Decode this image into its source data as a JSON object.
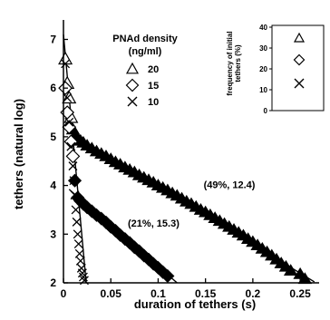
{
  "chart_data": {
    "type": "scatter",
    "title": "",
    "xlabel": "duration of tethers (s)",
    "ylabel": "tethers (natural log)",
    "xlim": [
      0,
      0.27
    ],
    "ylim": [
      2,
      7.4
    ],
    "xticks": [
      0,
      0.05,
      0.1,
      0.15,
      0.2,
      0.25
    ],
    "xtick_labels": [
      "0",
      "0.05",
      "0.1",
      "0.15",
      "0.2",
      "0.25"
    ],
    "yticks": [
      2,
      3,
      4,
      5,
      6,
      7
    ],
    "ytick_labels": [
      "2",
      "3",
      "4",
      "5",
      "6",
      "7"
    ],
    "grid": false,
    "legend": {
      "title_line1": "PNAd density",
      "title_line2": "(ng/ml)",
      "placement": "top-center",
      "entries": [
        {
          "label": "20",
          "marker": "triangle"
        },
        {
          "label": "15",
          "marker": "diamond"
        },
        {
          "label": "10",
          "marker": "x"
        }
      ]
    },
    "series": [
      {
        "marker": "triangle",
        "x": [
          0.002,
          0.004,
          0.006,
          0.008,
          0.01,
          0.012,
          0.015,
          0.018,
          0.021,
          0.025,
          0.03,
          0.035,
          0.04,
          0.045,
          0.05,
          0.055,
          0.06,
          0.065,
          0.07,
          0.075,
          0.08,
          0.085,
          0.09,
          0.095,
          0.1,
          0.105,
          0.11,
          0.115,
          0.12,
          0.125,
          0.13,
          0.135,
          0.14,
          0.145,
          0.15,
          0.155,
          0.16,
          0.165,
          0.17,
          0.175,
          0.18,
          0.185,
          0.19,
          0.195,
          0.2,
          0.205,
          0.21,
          0.215,
          0.22,
          0.225,
          0.23,
          0.235,
          0.24,
          0.25,
          0.255
        ],
        "y": [
          6.6,
          6.1,
          5.8,
          5.4,
          5.15,
          5.02,
          4.97,
          4.92,
          4.88,
          4.82,
          4.76,
          4.7,
          4.65,
          4.6,
          4.54,
          4.48,
          4.43,
          4.37,
          4.32,
          4.27,
          4.21,
          4.16,
          4.11,
          4.06,
          4.0,
          3.95,
          3.9,
          3.84,
          3.79,
          3.73,
          3.67,
          3.62,
          3.56,
          3.5,
          3.45,
          3.39,
          3.33,
          3.27,
          3.21,
          3.15,
          3.09,
          3.03,
          2.97,
          2.9,
          2.84,
          2.77,
          2.7,
          2.63,
          2.56,
          2.48,
          2.4,
          2.33,
          2.25,
          2.18,
          2.08
        ]
      },
      {
        "marker": "diamond",
        "x": [
          0.002,
          0.004,
          0.006,
          0.008,
          0.01,
          0.012,
          0.015,
          0.018,
          0.021,
          0.025,
          0.03,
          0.035,
          0.04,
          0.045,
          0.05,
          0.055,
          0.06,
          0.065,
          0.07,
          0.075,
          0.08,
          0.085,
          0.09,
          0.095,
          0.1,
          0.105,
          0.11
        ],
        "y": [
          6.0,
          5.5,
          5.2,
          4.9,
          4.6,
          4.1,
          3.75,
          3.68,
          3.62,
          3.55,
          3.47,
          3.39,
          3.32,
          3.24,
          3.15,
          3.07,
          2.98,
          2.9,
          2.82,
          2.73,
          2.65,
          2.56,
          2.48,
          2.39,
          2.31,
          2.22,
          2.14
        ]
      },
      {
        "marker": "x",
        "x": [
          0.002,
          0.004,
          0.006,
          0.008,
          0.01,
          0.011,
          0.012,
          0.013,
          0.014,
          0.015,
          0.016,
          0.017,
          0.018,
          0.019,
          0.02,
          0.021,
          0.022
        ],
        "y": [
          6.5,
          5.8,
          5.3,
          4.8,
          4.4,
          4.1,
          3.8,
          3.5,
          3.25,
          3.0,
          2.8,
          2.6,
          2.45,
          2.3,
          2.2,
          2.12,
          2.05
        ]
      }
    ],
    "fit_lines": [
      {
        "x": [
          0.006,
          0.265
        ],
        "y": [
          5.1,
          2.02
        ]
      },
      {
        "x": [
          0.006,
          0.12
        ],
        "y": [
          3.92,
          2.0
        ]
      },
      {
        "x": [
          0.0,
          0.024
        ],
        "y": [
          7.1,
          2.0
        ]
      }
    ],
    "annotations": [
      {
        "text": "(49%, 12.4)",
        "x": 0.148,
        "y": 3.95
      },
      {
        "text": "(21%, 15.3)",
        "x": 0.068,
        "y": 3.15
      }
    ],
    "inset": {
      "type": "bar",
      "ylabel_line1": "frequency of initial",
      "ylabel_line2": "tethers (%)",
      "ylim": [
        0,
        40
      ],
      "yticks": [
        0,
        10,
        20,
        30,
        40
      ],
      "ytick_labels": [
        "0",
        "10",
        "20",
        "30",
        "40"
      ],
      "legend_markers": [
        "triangle",
        "diamond",
        "x"
      ]
    }
  }
}
